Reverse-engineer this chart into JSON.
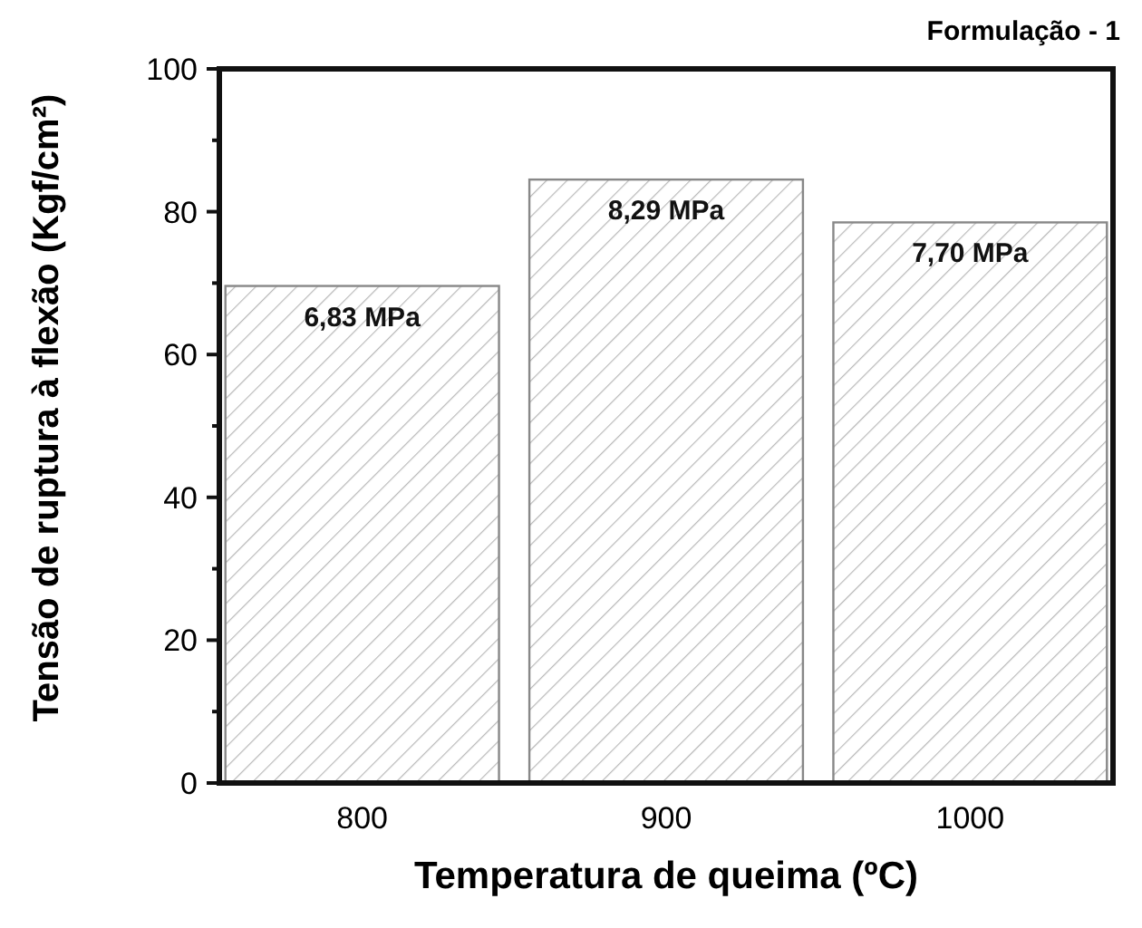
{
  "chart_data": {
    "type": "bar",
    "title": "Formulação - 1",
    "xlabel": "Temperatura de queima (ºC)",
    "ylabel": "Tensão de ruptura à flexão (Kgf/cm²)",
    "categories": [
      "800",
      "900",
      "1000"
    ],
    "values": [
      69.6,
      84.5,
      78.5
    ],
    "annotations": [
      {
        "text": "6,83 MPa",
        "x": "800",
        "y": 69.6
      },
      {
        "text": "8,29 MPa",
        "x": "900",
        "y": 84.5
      },
      {
        "text": "7,70 MPa",
        "x": "1000",
        "y": 78.5
      }
    ],
    "color": "#888888",
    "ylim": [
      0,
      100
    ],
    "yticks": [
      0,
      {
        "value": 10,
        "label": null
      },
      20,
      {
        "value": 30,
        "label": null
      },
      40,
      {
        "value": 50,
        "label": null
      },
      60,
      {
        "value": 70,
        "label": null
      },
      80,
      {
        "value": 90,
        "label": null
      },
      100
    ],
    "grid": false
  }
}
